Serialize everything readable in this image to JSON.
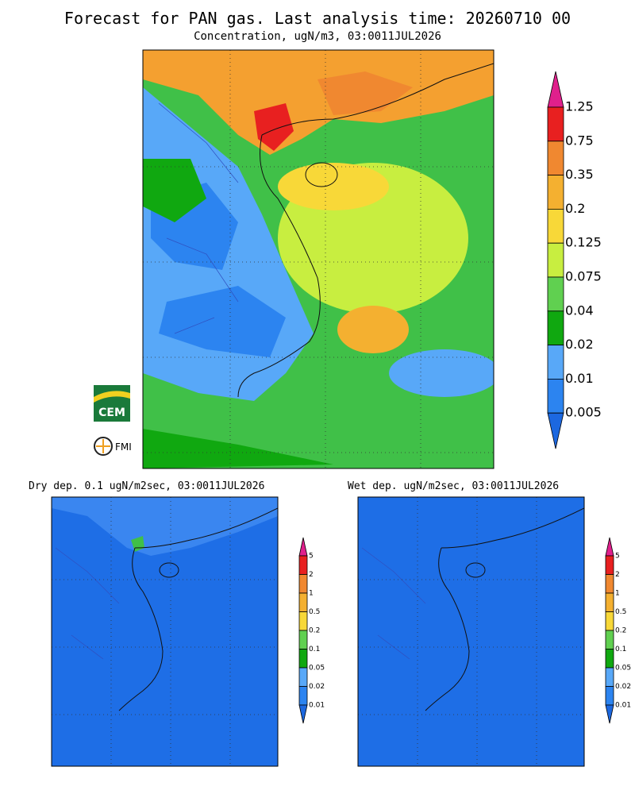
{
  "header": {
    "title": "Forecast for PAN gas. Last analysis time: 20260710 00",
    "subtitle": "Concentration, ugN/m3, 03:0011JUL2026"
  },
  "main_map": {
    "colorbar": {
      "labels": [
        "1.25",
        "0.75",
        "0.35",
        "0.2",
        "0.125",
        "0.075",
        "0.04",
        "0.02",
        "0.01",
        "0.005"
      ],
      "colors": [
        "#e0208c",
        "#e82020",
        "#f08830",
        "#f4b030",
        "#f8d838",
        "#c8ee40",
        "#60d050",
        "#10a810",
        "#58a8f8",
        "#2c84f0",
        "#1c68e0"
      ]
    }
  },
  "panels": [
    {
      "title": "Dry dep. 0.1 ugN/m2sec, 03:0011JUL2026",
      "colorbar": {
        "labels": [
          "5",
          "2",
          "1",
          "0.5",
          "0.2",
          "0.1",
          "0.05",
          "0.02",
          "0.01"
        ],
        "colors": [
          "#e0208c",
          "#e82020",
          "#f08830",
          "#f4b030",
          "#f8d838",
          "#60d050",
          "#10a810",
          "#58a8f8",
          "#2c84f0",
          "#1c68e0"
        ]
      }
    },
    {
      "title": "Wet dep. ugN/m2sec, 03:0011JUL2026",
      "colorbar": {
        "labels": [
          "5",
          "2",
          "1",
          "0.5",
          "0.2",
          "0.1",
          "0.05",
          "0.02",
          "0.01"
        ],
        "colors": [
          "#e0208c",
          "#e82020",
          "#f08830",
          "#f4b030",
          "#f8d838",
          "#60d050",
          "#10a810",
          "#58a8f8",
          "#2c84f0",
          "#1c68e0"
        ]
      }
    }
  ],
  "logos": [
    "CEM",
    "FMI"
  ]
}
